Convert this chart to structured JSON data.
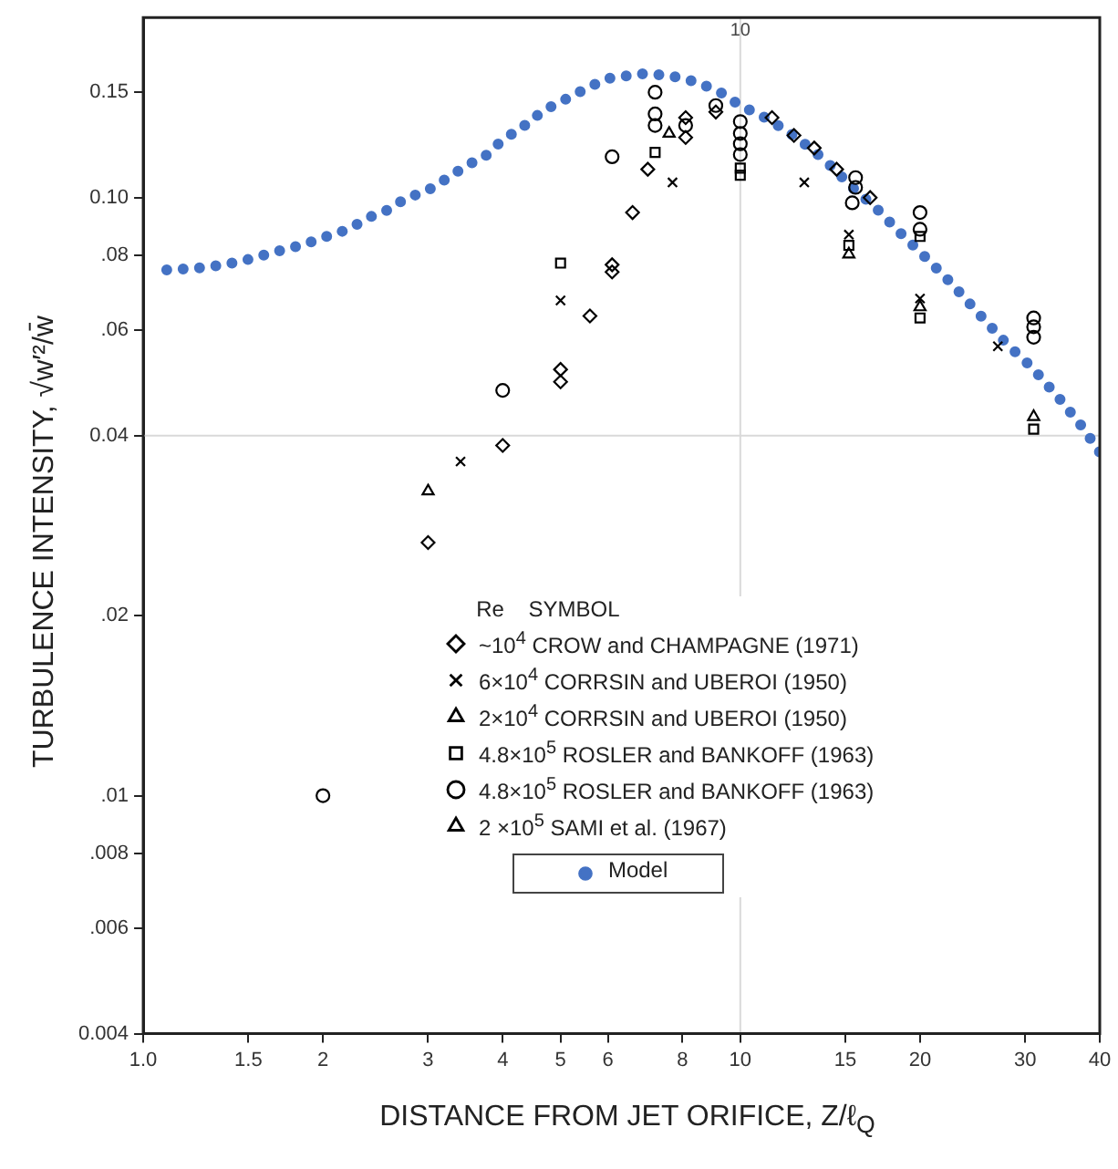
{
  "chart_data": {
    "type": "scatter",
    "xlabel": "DISTANCE FROM JET ORIFICE,  Z/ℓ$_{Q}$",
    "ylabel": "TURBULENCE INTENSITY, √w′²/w̄",
    "legend_title": "Re    SYMBOL",
    "legend": "bottom",
    "xlim": [
      1,
      40
    ],
    "xticks": [
      {
        "value": 1,
        "label": "1.0"
      },
      1.5,
      2,
      3,
      4,
      5,
      6,
      8,
      10,
      15,
      20,
      30,
      40
    ],
    "annotations": [
      {
        "text": "10",
        "x": 10,
        "y": 0.19
      }
    ],
    "ylim": [
      0.004,
      0.2
    ],
    "yticks": [
      {
        "value": 0.004,
        "label": "0.004"
      },
      {
        "value": 0.006,
        "label": ".006"
      },
      {
        "value": 0.008,
        "label": ".008"
      },
      {
        "value": 0.01,
        "label": ".01"
      },
      {
        "value": 0.02,
        "label": ".02"
      },
      0.04,
      {
        "value": 0.06,
        "label": ".06"
      },
      {
        "value": 0.08,
        "label": ".08"
      },
      {
        "value": 0.1,
        "label": "0.10"
      },
      0.15
    ],
    "log": "xy",
    "ref_lines": [
      {
        "axis": "x",
        "value": 10,
        "color": "#d9d9d9"
      },
      {
        "axis": "y",
        "value": 0.04,
        "color": "#d9d9d9"
      }
    ],
    "series": [
      {
        "name": "~10$^{4}$ CROW and CHAMPAGNE (1971)",
        "type": "scatter",
        "marker": "diamond",
        "color": "#000000",
        "x": [
          3,
          4,
          5,
          5,
          5.6,
          6.1,
          6.1,
          6.6,
          7,
          8.1,
          8.1,
          9.1,
          11.3,
          12.3,
          13.3,
          14.5,
          16.5
        ],
        "values": [
          0.0265,
          0.0385,
          0.0516,
          0.0492,
          0.0634,
          0.0772,
          0.0751,
          0.0944,
          0.1115,
          0.136,
          0.126,
          0.139,
          0.136,
          0.127,
          0.121,
          0.1115,
          0.1
        ]
      },
      {
        "name": "6×10$^{4}$ CORRSIN and UBEROI (1950)",
        "type": "scatter",
        "marker": "cross",
        "color": "#000000",
        "x": [
          3.4,
          5,
          7.7,
          12.8,
          15.2,
          20,
          27
        ],
        "values": [
          0.0362,
          0.0673,
          0.106,
          0.106,
          0.0867,
          0.0678,
          0.0564
        ]
      },
      {
        "name": "2×10$^{4}$ CORRSIN and UBEROI (1950)",
        "type": "scatter",
        "marker": "triangle",
        "color": "#000000",
        "x": [
          7.6,
          15.2,
          20,
          31
        ],
        "values": [
          0.128,
          0.0804,
          0.0656,
          0.043
        ]
      },
      {
        "name": "4.8×10$^{5}$ ROSLER and BANKOFF (1963)",
        "type": "scatter",
        "marker": "square",
        "color": "#000000",
        "x": [
          5,
          7.2,
          10,
          10,
          15.2,
          20,
          20,
          31
        ],
        "values": [
          0.0777,
          0.119,
          0.112,
          0.109,
          0.0832,
          0.0861,
          0.0629,
          0.041
        ]
      },
      {
        "name": "4.8×10$^{5}$ ROSLER and BANKOFF (1963)",
        "type": "scatter",
        "marker": "circle",
        "color": "#000000",
        "x": [
          2,
          4,
          6.1,
          7.2,
          7.2,
          7.2,
          8.1,
          9.1,
          10,
          10,
          10,
          10,
          15.6,
          15.6,
          15.4,
          20,
          20,
          31,
          31,
          31
        ],
        "values": [
          0.01,
          0.0476,
          0.117,
          0.15,
          0.138,
          0.132,
          0.132,
          0.1425,
          0.134,
          0.128,
          0.123,
          0.118,
          0.108,
          0.104,
          0.098,
          0.0944,
          0.0885,
          0.0629,
          0.0608,
          0.0584
        ]
      },
      {
        "name": "2 ×10$^{5}$ SAMI et al. (1967)",
        "type": "scatter",
        "marker": "triangle",
        "color": "#000000",
        "x": [
          3
        ],
        "values": [
          0.0323
        ]
      },
      {
        "name": "Model",
        "type": "line",
        "line_style": "dotted",
        "color": "#4472c4",
        "x": [
          1.095,
          1.278,
          1.459,
          1.655,
          1.838,
          2.028,
          2.205,
          2.399,
          2.591,
          2.759,
          2.958,
          3.151,
          3.333,
          3.524,
          3.7,
          3.89,
          4.08,
          4.26,
          4.44,
          4.63,
          5,
          5.44,
          5.96,
          6.85,
          7.61,
          8.45,
          9.26,
          10,
          11.18,
          12.42,
          13.8,
          15.4,
          17,
          18.65,
          20.6,
          22.5,
          25,
          28,
          30.8,
          34.3,
          37.5,
          40
        ],
        "values": [
          0.0757,
          0.0764,
          0.0782,
          0.081,
          0.0832,
          0.0861,
          0.0885,
          0.0928,
          0.0957,
          0.1,
          0.102,
          0.106,
          0.11,
          0.114,
          0.116,
          0.122,
          0.126,
          0.131,
          0.133,
          0.139,
          0.1445,
          0.151,
          0.158,
          0.161,
          0.16,
          0.156,
          0.15,
          0.1425,
          0.135,
          0.126,
          0.116,
          0.104,
          0.0954,
          0.0867,
          0.0788,
          0.0721,
          0.0642,
          0.0568,
          0.052,
          0.046,
          0.0412,
          0.0375
        ]
      }
    ]
  }
}
